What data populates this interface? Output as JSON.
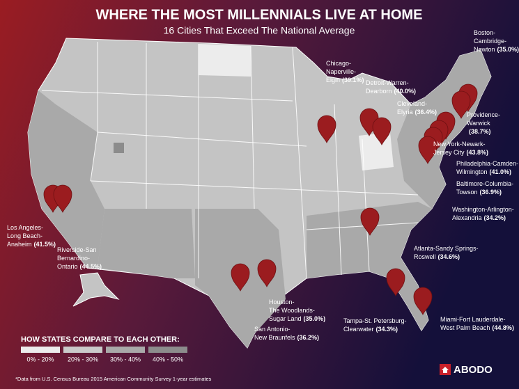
{
  "header": {
    "title": "WHERE THE MOST MILLENNIALS LIVE AT HOME",
    "subtitle": "16 Cities That Exceed The National Average"
  },
  "cities": [
    {
      "lines": [
        "Boston-",
        "Cambridge-",
        "Newton"
      ],
      "value": "(35.0%)"
    },
    {
      "lines": [
        "Chicago-",
        "Naperville-",
        "Elgin"
      ],
      "value": "(39.1%)"
    },
    {
      "lines": [
        "Detroit-Warren-",
        "Dearborn"
      ],
      "value": "(40.0%)"
    },
    {
      "lines": [
        "Cleveland-",
        "Elyria"
      ],
      "value": "(36.4%)"
    },
    {
      "lines": [
        "Providence-",
        "Warwick",
        ""
      ],
      "value": "(38.7%)"
    },
    {
      "lines": [
        "New York-Newark-",
        "Jersey City"
      ],
      "value": "(43.8%)"
    },
    {
      "lines": [
        "Philadelphia-Camden-",
        "Wilmington"
      ],
      "value": "(41.0%)"
    },
    {
      "lines": [
        "Baltimore-Columbia-",
        "Towson"
      ],
      "value": "(36.9%)"
    },
    {
      "lines": [
        "Washington-Arlington-",
        "Alexandria"
      ],
      "value": "(34.2%)"
    },
    {
      "lines": [
        "Atlanta-Sandy Springs-",
        "Roswell"
      ],
      "value": "(34.6%)"
    },
    {
      "lines": [
        "Tampa-St. Petersburg-",
        "Clearwater"
      ],
      "value": "(34.3%)"
    },
    {
      "lines": [
        "Miami-Fort Lauderdale-",
        "West Palm Beach"
      ],
      "value": "(44.8%)"
    },
    {
      "lines": [
        "Houston-",
        "The Woodlands-",
        "Sugar Land"
      ],
      "value": "(35.0%)"
    },
    {
      "lines": [
        "San Antonio-",
        "New Braunfels"
      ],
      "value": "(36.2%)"
    },
    {
      "lines": [
        "Los Angeles-",
        "Long Beach-",
        "Anaheim"
      ],
      "value": "(41.5%)"
    },
    {
      "lines": [
        "Riverside-San",
        "Bernardino-",
        "Ontario"
      ],
      "value": "(44.5%)"
    }
  ],
  "legend": {
    "title": "HOW STATES COMPARE TO EACH OTHER:",
    "items": [
      {
        "label": "0% -  20%",
        "color": "#ececec"
      },
      {
        "label": "20% -  30%",
        "color": "#cacaca"
      },
      {
        "label": "30% - 40%",
        "color": "#a9a9a9"
      },
      {
        "label": "40% -  50%",
        "color": "#8c8c8c"
      }
    ]
  },
  "footnote": "*Data from U.S. Census Bureau 2015 American Community Survey 1-year estimates",
  "logo": "ABODO"
}
